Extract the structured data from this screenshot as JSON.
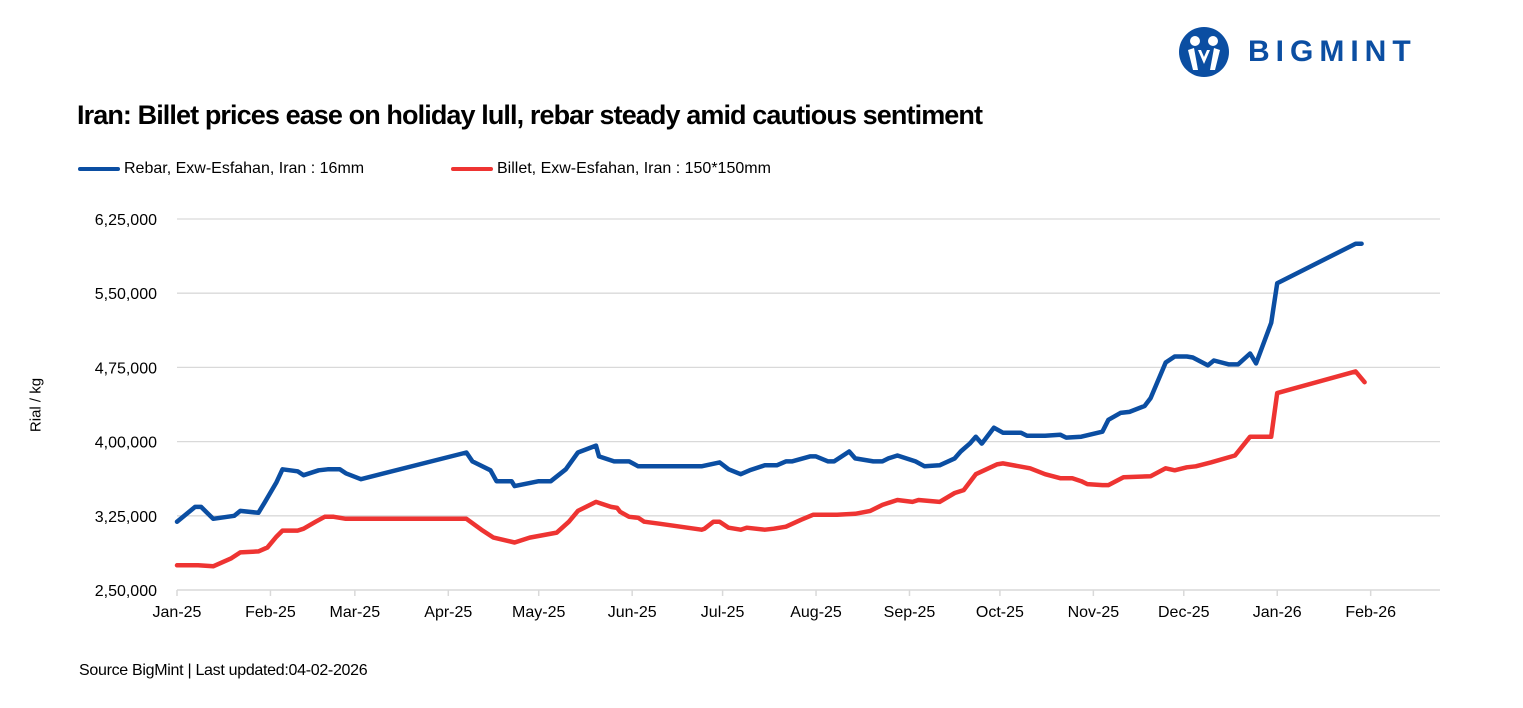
{
  "brand": {
    "name": "BIGMINT",
    "color": "#0b4ea2"
  },
  "chart_data": {
    "type": "line",
    "title": "Iran: Billet prices ease on holiday lull, rebar steady amid cautious sentiment",
    "ylabel": "Rial / kg",
    "xlabel": "",
    "ylim": [
      250000,
      625000
    ],
    "yticks": [
      250000,
      325000,
      400000,
      475000,
      550000,
      625000
    ],
    "ytick_labels": [
      "2,50,000",
      "3,25,000",
      "4,00,000",
      "4,75,000",
      "5,50,000",
      "6,25,000"
    ],
    "xlim": [
      "2025-01-01",
      "2026-02-24"
    ],
    "xticks": [
      "2025-01-01",
      "2025-02-01",
      "2025-03-01",
      "2025-04-01",
      "2025-05-01",
      "2025-06-01",
      "2025-07-01",
      "2025-08-01",
      "2025-09-01",
      "2025-10-01",
      "2025-11-01",
      "2025-12-01",
      "2026-01-01",
      "2026-02-01"
    ],
    "xtick_labels": [
      "Jan-25",
      "Feb-25",
      "Mar-25",
      "Apr-25",
      "May-25",
      "Jun-25",
      "Jul-25",
      "Aug-25",
      "Sep-25",
      "Oct-25",
      "Nov-25",
      "Dec-25",
      "Jan-26",
      "Feb-26"
    ],
    "grid": "horizontal",
    "legend_position": "top-left",
    "series": [
      {
        "name": "Rebar, Exw-Esfahan, Iran : 16mm",
        "color": "#0b4ea2",
        "points": [
          [
            "2025-01-01",
            319000
          ],
          [
            "2025-01-07",
            334000
          ],
          [
            "2025-01-09",
            334000
          ],
          [
            "2025-01-13",
            322000
          ],
          [
            "2025-01-20",
            325000
          ],
          [
            "2025-01-22",
            330000
          ],
          [
            "2025-01-28",
            328000
          ],
          [
            "2025-01-30",
            338000
          ],
          [
            "2025-02-03",
            359000
          ],
          [
            "2025-02-05",
            372000
          ],
          [
            "2025-02-10",
            370000
          ],
          [
            "2025-02-12",
            366000
          ],
          [
            "2025-02-17",
            371000
          ],
          [
            "2025-02-20",
            372000
          ],
          [
            "2025-02-24",
            372000
          ],
          [
            "2025-02-26",
            368000
          ],
          [
            "2025-03-03",
            362000
          ],
          [
            "2025-04-07",
            389000
          ],
          [
            "2025-04-09",
            380000
          ],
          [
            "2025-04-15",
            371000
          ],
          [
            "2025-04-17",
            360000
          ],
          [
            "2025-04-22",
            360000
          ],
          [
            "2025-04-23",
            355000
          ],
          [
            "2025-05-01",
            360000
          ],
          [
            "2025-05-05",
            360000
          ],
          [
            "2025-05-10",
            372000
          ],
          [
            "2025-05-14",
            389000
          ],
          [
            "2025-05-20",
            396000
          ],
          [
            "2025-05-21",
            385000
          ],
          [
            "2025-05-26",
            380000
          ],
          [
            "2025-05-31",
            380000
          ],
          [
            "2025-06-03",
            375000
          ],
          [
            "2025-06-10",
            375000
          ],
          [
            "2025-06-24",
            375000
          ],
          [
            "2025-06-30",
            379000
          ],
          [
            "2025-07-03",
            372000
          ],
          [
            "2025-07-07",
            367000
          ],
          [
            "2025-07-10",
            371000
          ],
          [
            "2025-07-15",
            376000
          ],
          [
            "2025-07-19",
            376000
          ],
          [
            "2025-07-22",
            380000
          ],
          [
            "2025-07-24",
            380000
          ],
          [
            "2025-07-30",
            385000
          ],
          [
            "2025-08-01",
            385000
          ],
          [
            "2025-08-05",
            380000
          ],
          [
            "2025-08-07",
            380000
          ],
          [
            "2025-08-12",
            390000
          ],
          [
            "2025-08-14",
            383000
          ],
          [
            "2025-08-20",
            380000
          ],
          [
            "2025-08-23",
            380000
          ],
          [
            "2025-08-25",
            383000
          ],
          [
            "2025-08-28",
            386000
          ],
          [
            "2025-09-03",
            380000
          ],
          [
            "2025-09-06",
            375000
          ],
          [
            "2025-09-11",
            376000
          ],
          [
            "2025-09-16",
            383000
          ],
          [
            "2025-09-18",
            390000
          ],
          [
            "2025-09-21",
            398000
          ],
          [
            "2025-09-23",
            405000
          ],
          [
            "2025-09-25",
            398000
          ],
          [
            "2025-09-29",
            414000
          ],
          [
            "2025-10-02",
            409000
          ],
          [
            "2025-10-08",
            409000
          ],
          [
            "2025-10-10",
            406000
          ],
          [
            "2025-10-16",
            406000
          ],
          [
            "2025-10-21",
            407000
          ],
          [
            "2025-10-23",
            404000
          ],
          [
            "2025-10-28",
            405000
          ],
          [
            "2025-11-04",
            410000
          ],
          [
            "2025-11-06",
            422000
          ],
          [
            "2025-11-10",
            429000
          ],
          [
            "2025-11-13",
            430000
          ],
          [
            "2025-11-18",
            436000
          ],
          [
            "2025-11-20",
            444000
          ],
          [
            "2025-11-25",
            480000
          ],
          [
            "2025-11-28",
            486000
          ],
          [
            "2025-12-02",
            486000
          ],
          [
            "2025-12-04",
            485000
          ],
          [
            "2025-12-09",
            477000
          ],
          [
            "2025-12-11",
            482000
          ],
          [
            "2025-12-16",
            478000
          ],
          [
            "2025-12-19",
            478000
          ],
          [
            "2025-12-23",
            489000
          ],
          [
            "2025-12-25",
            479000
          ],
          [
            "2025-12-30",
            520000
          ],
          [
            "2026-01-01",
            560000
          ],
          [
            "2026-01-27",
            600000
          ],
          [
            "2026-01-29",
            600000
          ]
        ]
      },
      {
        "name": "Billet, Exw-Esfahan, Iran : 150*150mm",
        "color": "#ee3432",
        "points": [
          [
            "2025-01-01",
            275000
          ],
          [
            "2025-01-08",
            275000
          ],
          [
            "2025-01-13",
            274000
          ],
          [
            "2025-01-19",
            282000
          ],
          [
            "2025-01-22",
            288000
          ],
          [
            "2025-01-28",
            289000
          ],
          [
            "2025-01-31",
            293000
          ],
          [
            "2025-02-03",
            304000
          ],
          [
            "2025-02-05",
            310000
          ],
          [
            "2025-02-10",
            310000
          ],
          [
            "2025-02-12",
            312000
          ],
          [
            "2025-02-16",
            319000
          ],
          [
            "2025-02-19",
            324000
          ],
          [
            "2025-02-22",
            324000
          ],
          [
            "2025-02-26",
            322000
          ],
          [
            "2025-03-03",
            322000
          ],
          [
            "2025-04-07",
            322000
          ],
          [
            "2025-04-12",
            311000
          ],
          [
            "2025-04-16",
            303000
          ],
          [
            "2025-04-23",
            298000
          ],
          [
            "2025-04-28",
            303000
          ],
          [
            "2025-05-07",
            308000
          ],
          [
            "2025-05-11",
            319000
          ],
          [
            "2025-05-14",
            330000
          ],
          [
            "2025-05-20",
            339000
          ],
          [
            "2025-05-25",
            334000
          ],
          [
            "2025-05-27",
            333000
          ],
          [
            "2025-05-28",
            329000
          ],
          [
            "2025-05-31",
            324000
          ],
          [
            "2025-06-03",
            323000
          ],
          [
            "2025-06-05",
            319000
          ],
          [
            "2025-06-10",
            317000
          ],
          [
            "2025-06-24",
            311000
          ],
          [
            "2025-06-25",
            312000
          ],
          [
            "2025-06-28",
            319000
          ],
          [
            "2025-06-30",
            319000
          ],
          [
            "2025-07-03",
            313000
          ],
          [
            "2025-07-07",
            311000
          ],
          [
            "2025-07-09",
            313000
          ],
          [
            "2025-07-15",
            311000
          ],
          [
            "2025-07-18",
            312000
          ],
          [
            "2025-07-22",
            314000
          ],
          [
            "2025-07-27",
            321000
          ],
          [
            "2025-07-31",
            326000
          ],
          [
            "2025-08-08",
            326000
          ],
          [
            "2025-08-14",
            327000
          ],
          [
            "2025-08-19",
            330000
          ],
          [
            "2025-08-23",
            336000
          ],
          [
            "2025-08-28",
            341000
          ],
          [
            "2025-09-02",
            339000
          ],
          [
            "2025-09-04",
            341000
          ],
          [
            "2025-09-11",
            339000
          ],
          [
            "2025-09-16",
            348000
          ],
          [
            "2025-09-19",
            351000
          ],
          [
            "2025-09-23",
            367000
          ],
          [
            "2025-09-30",
            377000
          ],
          [
            "2025-10-02",
            378000
          ],
          [
            "2025-10-11",
            373000
          ],
          [
            "2025-10-16",
            367000
          ],
          [
            "2025-10-21",
            363000
          ],
          [
            "2025-10-25",
            363000
          ],
          [
            "2025-10-28",
            360000
          ],
          [
            "2025-10-30",
            357000
          ],
          [
            "2025-11-04",
            356000
          ],
          [
            "2025-11-06",
            356000
          ],
          [
            "2025-11-11",
            364000
          ],
          [
            "2025-11-20",
            365000
          ],
          [
            "2025-11-25",
            373000
          ],
          [
            "2025-11-28",
            371000
          ],
          [
            "2025-12-02",
            374000
          ],
          [
            "2025-12-05",
            375000
          ],
          [
            "2025-12-10",
            379000
          ],
          [
            "2025-12-18",
            386000
          ],
          [
            "2025-12-23",
            405000
          ],
          [
            "2025-12-30",
            405000
          ],
          [
            "2026-01-01",
            449000
          ],
          [
            "2026-01-27",
            471000
          ],
          [
            "2026-01-30",
            460000
          ]
        ]
      }
    ]
  },
  "footer": {
    "source": "Source BigMint | Last updated:04-02-2026"
  }
}
